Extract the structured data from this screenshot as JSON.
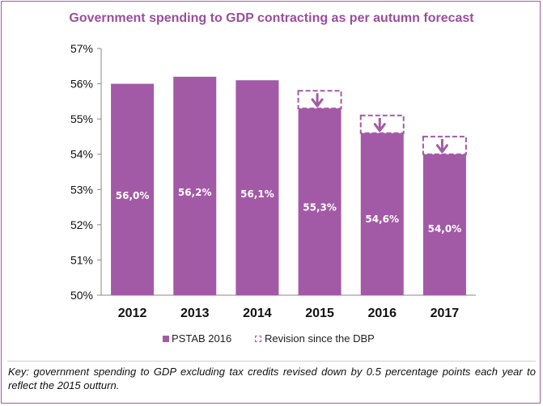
{
  "chart_data": {
    "type": "bar",
    "title": "Government spending to GDP contracting as per autumn forecast",
    "categories": [
      "2012",
      "2013",
      "2014",
      "2015",
      "2016",
      "2017"
    ],
    "series": [
      {
        "name": "PSTAB 2016",
        "values": [
          56.0,
          56.2,
          56.1,
          55.3,
          54.6,
          54.0
        ]
      },
      {
        "name": "Revision since the DBP",
        "values": [
          null,
          null,
          null,
          0.5,
          0.5,
          0.5
        ]
      }
    ],
    "data_labels": [
      "56,0%",
      "56,2%",
      "56,1%",
      "55,3%",
      "54,6%",
      "54,0%"
    ],
    "yticks": [
      50,
      51,
      52,
      53,
      54,
      55,
      56,
      57
    ],
    "ytick_labels": [
      "50%",
      "51%",
      "52%",
      "53%",
      "54%",
      "55%",
      "56%",
      "57%"
    ],
    "ylim": [
      50,
      57
    ],
    "xlabel": "",
    "ylabel": "",
    "legend_position": "bottom",
    "colors": {
      "bar": "#a35aa6",
      "title": "#9b4d9e"
    }
  },
  "legend": {
    "pstab_label": "PSTAB 2016",
    "revision_label": "Revision since the DBP"
  },
  "key": {
    "text": "Key: government spending to GDP excluding tax credits revised down by 0.5 percentage points each year to reflect the 2015 outturn."
  }
}
